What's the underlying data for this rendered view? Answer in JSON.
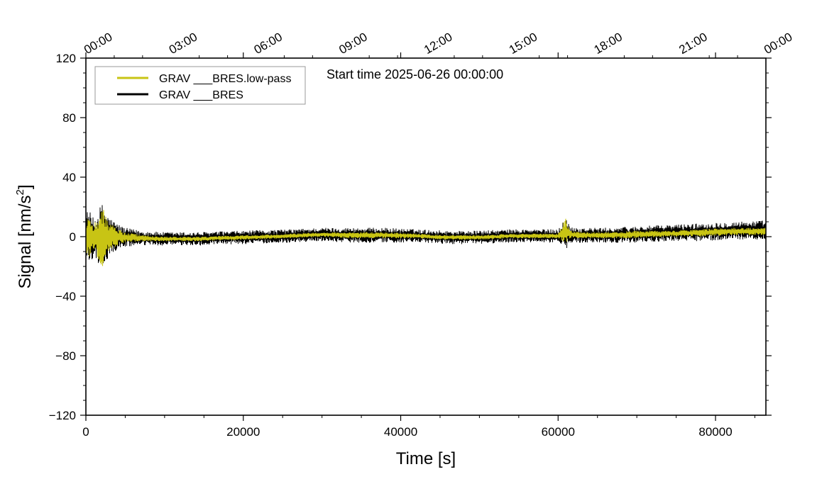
{
  "chart_data": {
    "type": "line",
    "title": "",
    "annotation": "Start time 2025-06-26 00:00:00",
    "xlabel": "Time [s]",
    "ylabel": "Signal [nm/s²]",
    "ylabel_main": "Signal [nm/s",
    "ylabel_sup": "2",
    "ylabel_end": "]",
    "xlim": [
      0,
      86400
    ],
    "ylim": [
      -120,
      120
    ],
    "x_ticks": [
      0,
      20000,
      40000,
      60000,
      80000
    ],
    "x_tick_labels": [
      "0",
      "20000",
      "40000",
      "60000",
      "80000"
    ],
    "y_ticks": [
      -120,
      -80,
      -40,
      0,
      40,
      80,
      120
    ],
    "y_tick_labels": [
      "−120",
      "−80",
      "−40",
      "0",
      "40",
      "80",
      "120"
    ],
    "top_axis": {
      "ticks": [
        0,
        10800,
        21600,
        32400,
        43200,
        54000,
        64800,
        75600,
        86400
      ],
      "labels": [
        "00:00",
        "03:00",
        "06:00",
        "09:00",
        "12:00",
        "15:00",
        "18:00",
        "21:00",
        "00:00"
      ]
    },
    "legend_position": "top-left",
    "grid": false,
    "series": [
      {
        "name": "GRAV ___BRES.low-pass",
        "color": "#c8c414",
        "envelope": {
          "x": [
            0,
            400,
            1000,
            1500,
            2000,
            2500,
            3000,
            4000,
            5000,
            7000,
            10000,
            14000,
            20000,
            26000,
            30000,
            34000,
            38000,
            42000,
            46000,
            50000,
            54000,
            58000,
            60000,
            61000,
            61500,
            63000,
            66000,
            70000,
            74000,
            78000,
            82000,
            86400
          ],
          "upper": [
            10,
            14,
            9,
            13,
            22,
            15,
            10,
            6,
            3,
            1,
            0,
            0,
            1,
            2,
            3,
            3,
            3,
            2,
            1,
            1,
            2,
            2,
            2,
            13,
            4,
            3,
            3,
            4,
            4,
            5,
            6,
            6
          ],
          "lower": [
            -12,
            -15,
            -10,
            -14,
            -22,
            -15,
            -10,
            -6,
            -4,
            -3,
            -3,
            -3,
            -2,
            -1,
            0,
            -1,
            -1,
            -1,
            -2,
            -2,
            -1,
            -1,
            -1,
            -5,
            -1,
            -1,
            -1,
            -1,
            0,
            0,
            1,
            1
          ]
        }
      },
      {
        "name": "GRAV ___BRES",
        "color": "#000000",
        "envelope": {
          "x": [
            0,
            400,
            1000,
            1500,
            2000,
            2500,
            3000,
            4000,
            5000,
            7000,
            10000,
            14000,
            20000,
            26000,
            30000,
            34000,
            38000,
            42000,
            46000,
            50000,
            54000,
            58000,
            60000,
            61000,
            61500,
            63000,
            66000,
            70000,
            74000,
            78000,
            82000,
            86400
          ],
          "upper": [
            17,
            18,
            12,
            16,
            23,
            18,
            13,
            9,
            6,
            4,
            3,
            3,
            4,
            5,
            6,
            6,
            6,
            5,
            4,
            4,
            5,
            5,
            5,
            13,
            7,
            6,
            6,
            7,
            8,
            9,
            10,
            11
          ],
          "lower": [
            -16,
            -18,
            -14,
            -17,
            -24,
            -18,
            -13,
            -9,
            -7,
            -6,
            -6,
            -6,
            -5,
            -4,
            -3,
            -4,
            -4,
            -4,
            -5,
            -5,
            -4,
            -4,
            -4,
            -9,
            -4,
            -4,
            -4,
            -4,
            -3,
            -3,
            -2,
            -2
          ]
        }
      }
    ]
  }
}
